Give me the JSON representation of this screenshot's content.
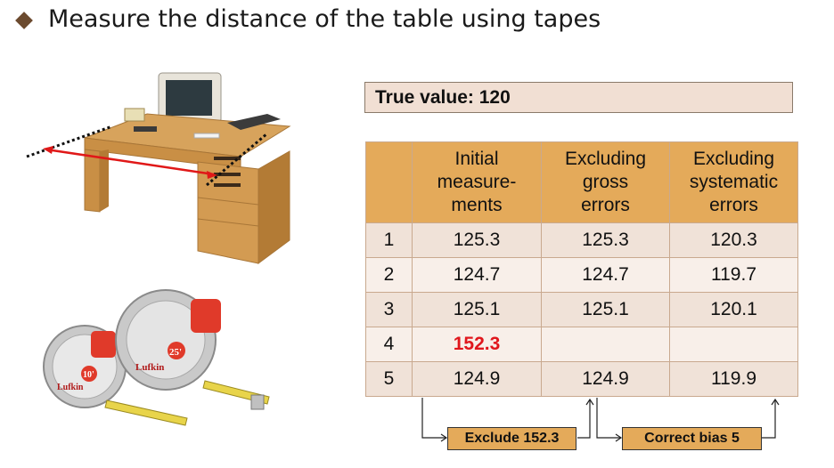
{
  "slide": {
    "title": "Measure the distance of the table using tapes",
    "true_value": "True value: 120"
  },
  "table": {
    "headers": [
      "",
      "Initial\nmeasure-\nments",
      "Excluding\ngross\nerrors",
      "Excluding\nsystematic\nerrors"
    ],
    "rows": [
      [
        "1",
        "125.3",
        "125.3",
        "120.3"
      ],
      [
        "2",
        "124.7",
        "124.7",
        "119.7"
      ],
      [
        "3",
        "125.1",
        "125.1",
        "120.1"
      ],
      [
        "4",
        "152.3",
        "",
        ""
      ],
      [
        "5",
        "124.9",
        "124.9",
        "119.9"
      ]
    ]
  },
  "notes": {
    "exclude": "Exclude 152.3",
    "correct": "Correct bias 5"
  },
  "illustrations": {
    "tape_small_label": "10'",
    "tape_large_label": "25'",
    "brand": "Lufkin"
  },
  "colors": {
    "header_fill": "#e4aa5a",
    "row_fill_a": "#f0e2d8",
    "row_fill_b": "#f8efe9",
    "outlier": "#e0161c",
    "measure_arrow": "#e01818",
    "bullet": "#6b4a2e"
  }
}
